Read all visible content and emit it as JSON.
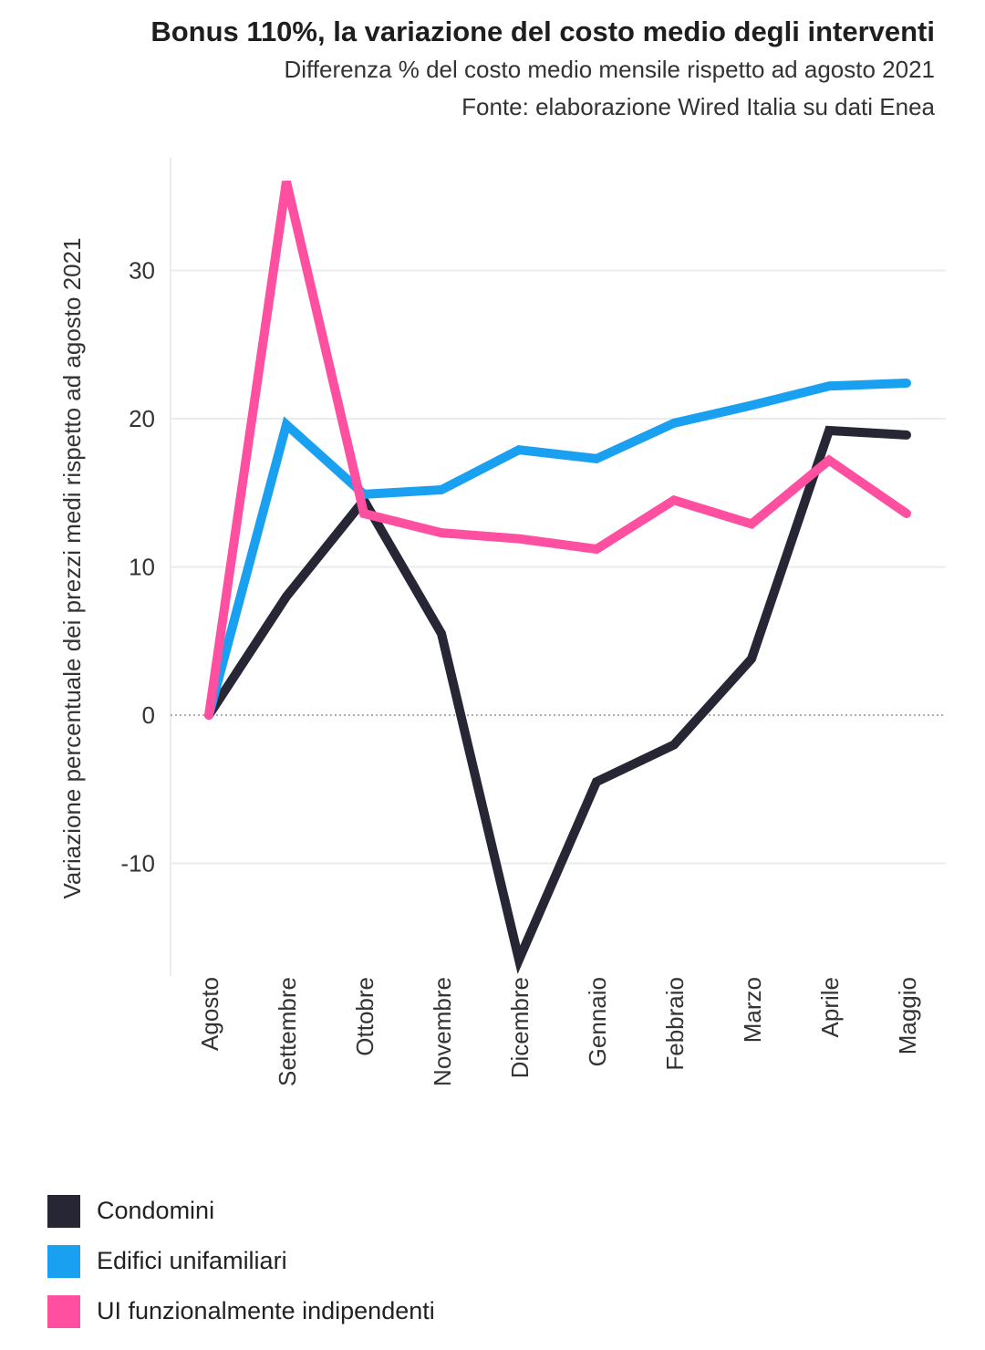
{
  "header": {
    "title": "Bonus 110%, la variazione del costo medio degli interventi",
    "subtitle": "Differenza % del costo medio mensile rispetto ad agosto 2021",
    "source": "Fonte: elaborazione Wired Italia su dati Enea"
  },
  "chart_data": {
    "type": "line",
    "ylabel": "Variazione percentuale dei prezzi medi rispetto ad agosto 2021",
    "xlabel": "",
    "categories": [
      "Agosto",
      "Settembre",
      "Ottobre",
      "Novembre",
      "Dicembre",
      "Gennaio",
      "Febbraio",
      "Marzo",
      "Aprile",
      "Maggio"
    ],
    "yticks": [
      -10,
      0,
      10,
      20,
      30
    ],
    "ylim": [
      -17,
      37
    ],
    "grid": true,
    "legend_position": "bottom-left",
    "series": [
      {
        "name": "Condomini",
        "color": "#262635",
        "values": [
          0,
          8,
          14.5,
          5.5,
          -16.5,
          -4.5,
          -2,
          3.8,
          19.2,
          18.9
        ]
      },
      {
        "name": "Edifici unifamiliari",
        "color": "#1aa0f0",
        "values": [
          0,
          19.6,
          14.9,
          15.2,
          17.9,
          17.3,
          19.7,
          20.9,
          22.2,
          22.4
        ]
      },
      {
        "name": "UI funzionalmente indipendenti",
        "color": "#ff4fa0",
        "values": [
          0,
          36,
          13.6,
          12.3,
          11.9,
          11.2,
          14.5,
          12.9,
          17.2,
          13.6
        ]
      }
    ]
  }
}
